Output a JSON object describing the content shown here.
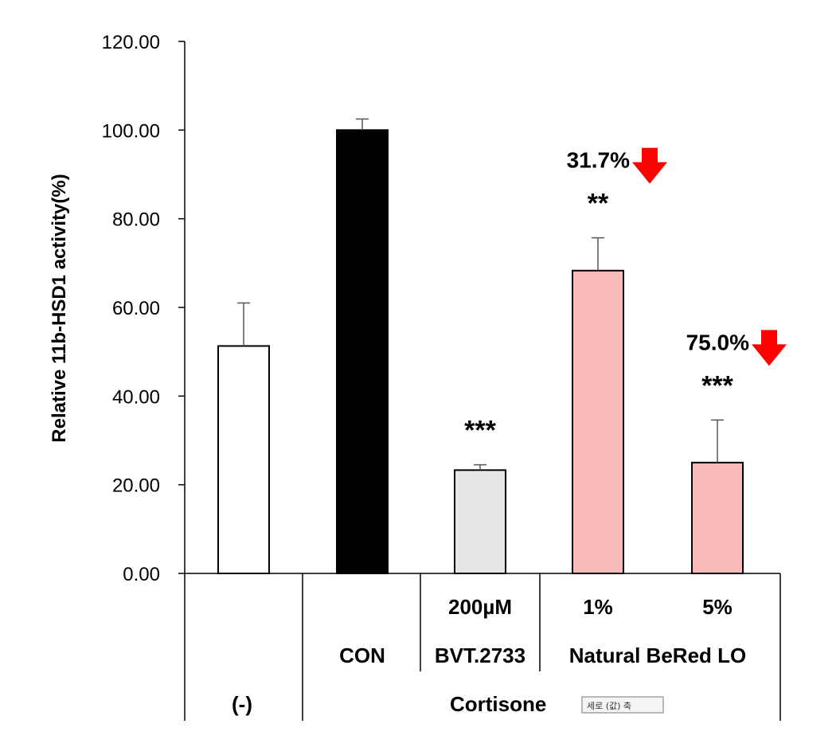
{
  "chart_data": {
    "type": "bar",
    "ylabel": "Relative 11b-HSD1 activity(%)",
    "ylim": [
      0,
      120
    ],
    "yticks": [
      "0.00",
      "20.00",
      "40.00",
      "60.00",
      "80.00",
      "100.00",
      "120.00"
    ],
    "grid": false,
    "bars": [
      {
        "value": 51.3,
        "error": 9.7,
        "color": "#ffffff",
        "sig": "",
        "reduction": ""
      },
      {
        "value": 100.0,
        "error": 2.5,
        "color": "#000000",
        "sig": "",
        "reduction": ""
      },
      {
        "value": 23.3,
        "error": 1.2,
        "color": "#e6e6e6",
        "sig": "***",
        "reduction": ""
      },
      {
        "value": 68.3,
        "error": 7.4,
        "color": "#f8b9b9",
        "sig": "**",
        "reduction": "31.7%"
      },
      {
        "value": 25.0,
        "error": 9.6,
        "color": "#f8b9b9",
        "sig": "***",
        "reduction": "75.0%"
      }
    ],
    "category_rows": {
      "row1": [
        "",
        "",
        "200µM",
        "1%",
        "5%"
      ],
      "row2": [
        "",
        "CON",
        "BVT.2733",
        "Natural BeRed LO"
      ],
      "row3": [
        "(-)",
        "Cortisone"
      ]
    },
    "arrow_color": "#ff0000"
  },
  "tooltip": "세로 (값) 축"
}
